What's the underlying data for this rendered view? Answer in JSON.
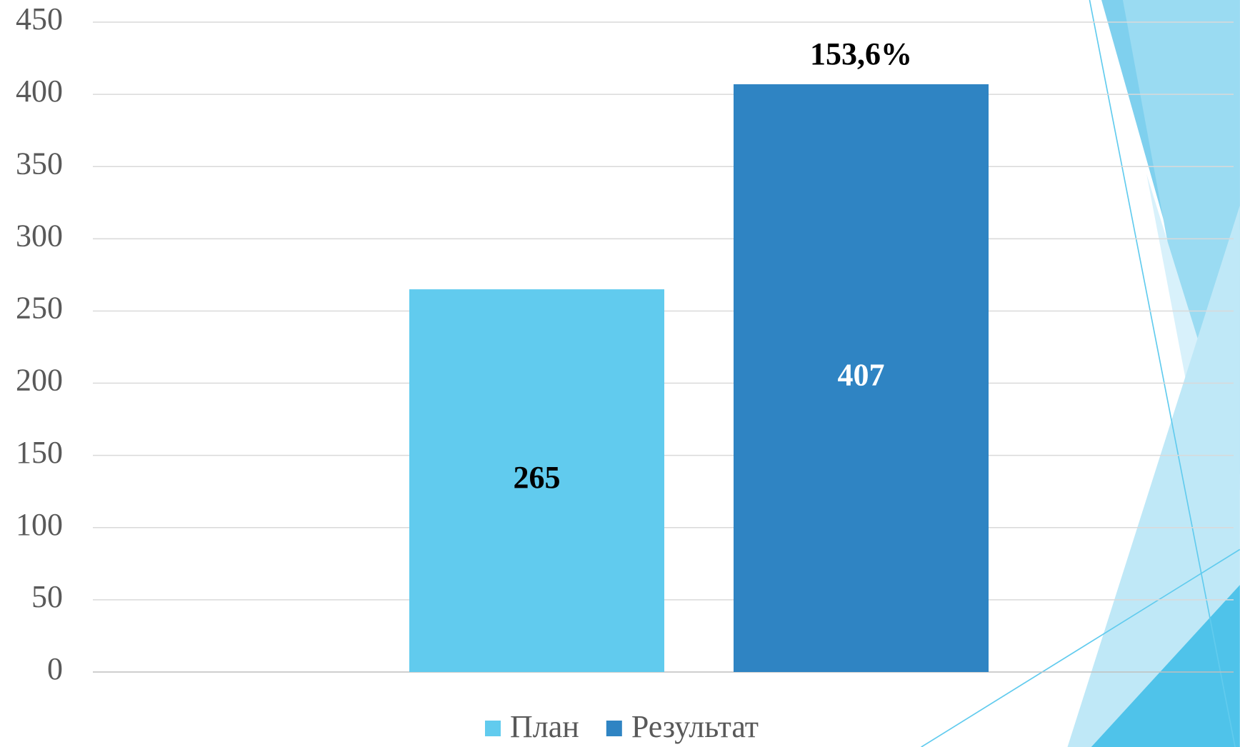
{
  "chart_data": {
    "type": "bar",
    "annotation": "153,6%",
    "categories": [
      null
    ],
    "series": [
      {
        "name": "План",
        "color": "#61cbee",
        "values": [
          265
        ]
      },
      {
        "name": "Результат",
        "color": "#2f84c3",
        "values": [
          407
        ]
      }
    ],
    "ylim": [
      0,
      450
    ],
    "yticks": [
      0,
      50,
      100,
      150,
      200,
      250,
      300,
      350,
      400,
      450
    ],
    "grid": true,
    "legend": "bottom"
  }
}
